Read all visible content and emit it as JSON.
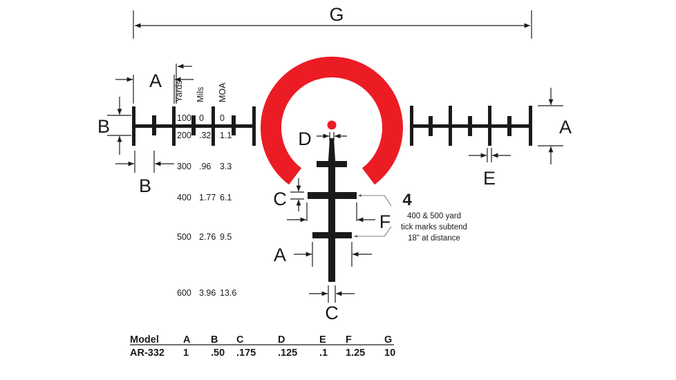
{
  "labels": {
    "A": "A",
    "B": "B",
    "C": "C",
    "D": "D",
    "E": "E",
    "F": "F",
    "G": "G"
  },
  "colors": {
    "reticle": "#1a1a1a",
    "ring": "#ec1c24",
    "dot": "#ec1c24"
  },
  "bdc_table": {
    "headers": [
      "Yards",
      "Mils",
      "MOA"
    ],
    "rows": [
      [
        "100",
        "0",
        "0"
      ],
      [
        "200",
        ".32",
        "1.1"
      ],
      [
        "300",
        ".96",
        "3.3"
      ],
      [
        "400",
        "1.77",
        "6.1"
      ],
      [
        "500",
        "2.76",
        "9.5"
      ],
      [
        "600",
        "3.96",
        "13.6"
      ]
    ]
  },
  "callout": {
    "number": "4",
    "lines": [
      "400 & 500 yard",
      "tick marks subtend",
      "18\" at distance"
    ]
  },
  "spec_table": {
    "headers": [
      "Model",
      "A",
      "B",
      "C",
      "D",
      "E",
      "F",
      "G"
    ],
    "row": [
      "AR-332",
      "1",
      ".50",
      ".175",
      ".125",
      ".1",
      "1.25",
      "10"
    ]
  }
}
